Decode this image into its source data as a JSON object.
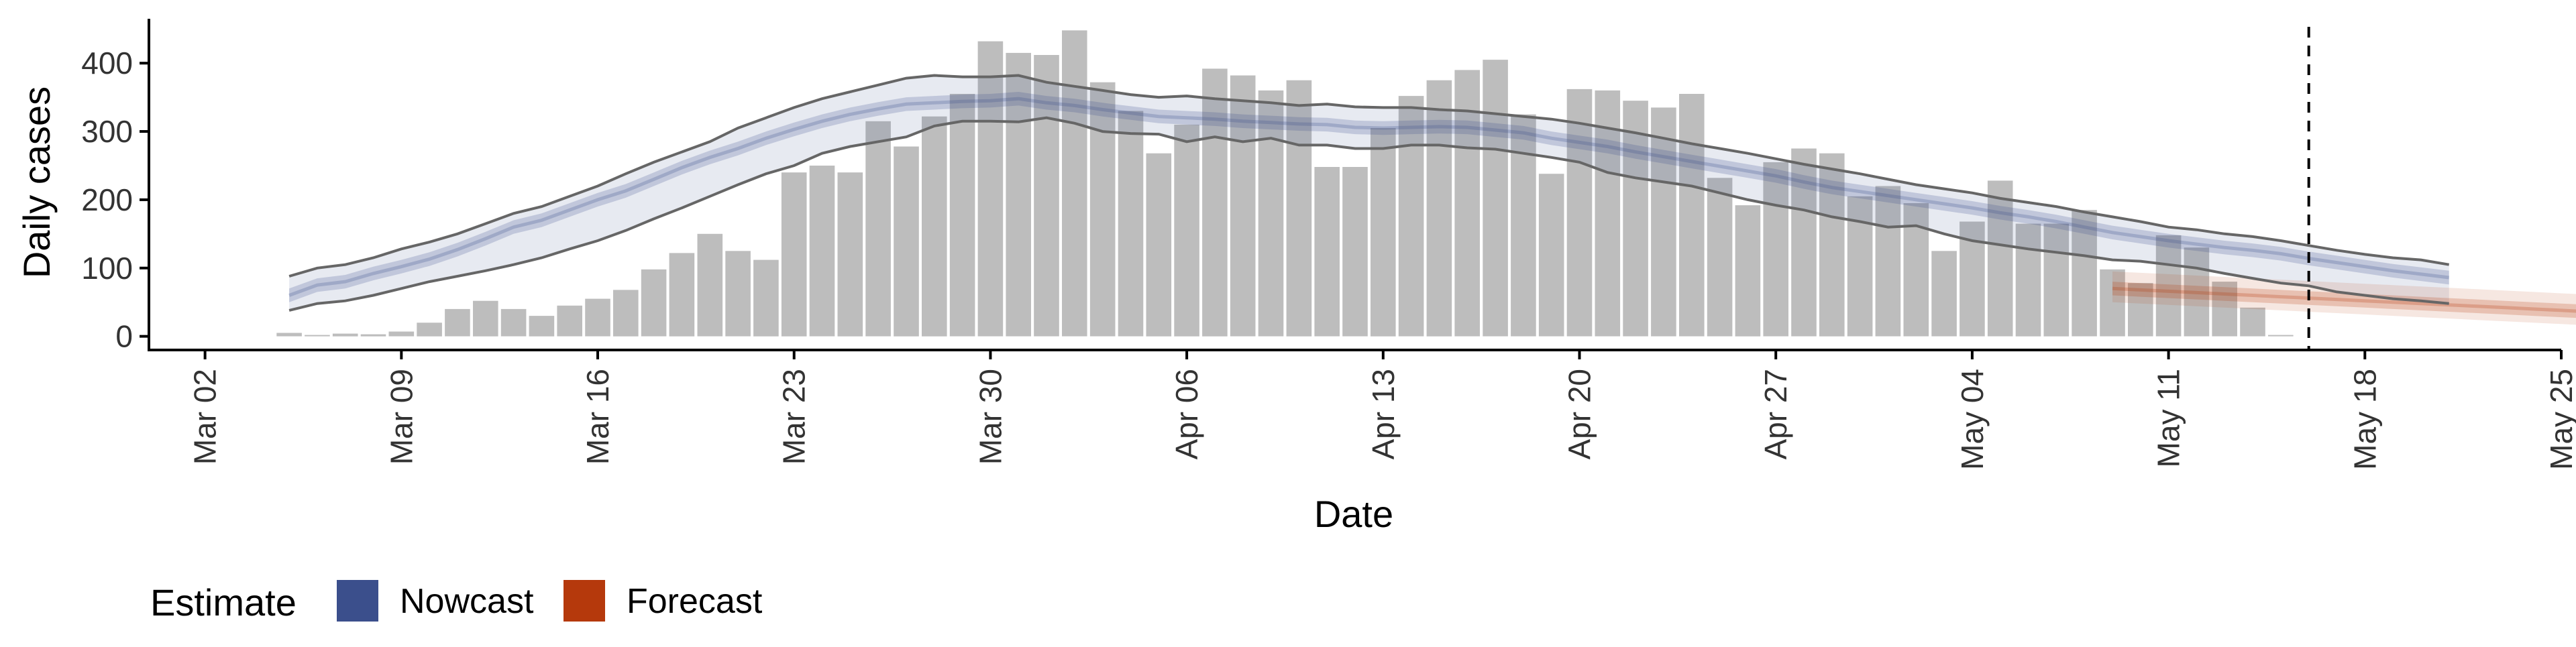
{
  "chart_data": {
    "type": "bar",
    "xlabel": "Date",
    "ylabel": "Daily cases",
    "ylim": [
      -20,
      465
    ],
    "xlim": [
      "2020-02-29",
      "2020-05-25"
    ],
    "y_ticks": [
      0,
      100,
      200,
      300,
      400
    ],
    "x_ticks": [
      {
        "date": "2020-03-02",
        "label": "Mar 02"
      },
      {
        "date": "2020-03-09",
        "label": "Mar 09"
      },
      {
        "date": "2020-03-16",
        "label": "Mar 16"
      },
      {
        "date": "2020-03-23",
        "label": "Mar 23"
      },
      {
        "date": "2020-03-30",
        "label": "Mar 30"
      },
      {
        "date": "2020-04-06",
        "label": "Apr 06"
      },
      {
        "date": "2020-04-13",
        "label": "Apr 13"
      },
      {
        "date": "2020-04-20",
        "label": "Apr 20"
      },
      {
        "date": "2020-04-27",
        "label": "Apr 27"
      },
      {
        "date": "2020-05-04",
        "label": "May 04"
      },
      {
        "date": "2020-05-11",
        "label": "May 11"
      },
      {
        "date": "2020-05-18",
        "label": "May 18"
      },
      {
        "date": "2020-05-25",
        "label": "May 25"
      }
    ],
    "grid": false,
    "legend_position": "bottom-left",
    "bar_color": "#bdbdbd",
    "reference_line_date": "2020-05-16",
    "observed_cases": {
      "start_date": "2020-03-05",
      "values": [
        5,
        2,
        4,
        3,
        7,
        20,
        40,
        52,
        40,
        30,
        45,
        55,
        68,
        98,
        122,
        150,
        125,
        112,
        240,
        250,
        240,
        315,
        278,
        322,
        355,
        432,
        415,
        412,
        448,
        372,
        330,
        268,
        310,
        392,
        382,
        360,
        375,
        248,
        248,
        305,
        352,
        375,
        390,
        405,
        325,
        238,
        362,
        360,
        345,
        335,
        355,
        232,
        192,
        255,
        275,
        268,
        205,
        220,
        195,
        125,
        168,
        228,
        165,
        165,
        185,
        98,
        78,
        148,
        130,
        80,
        42,
        2
      ]
    },
    "series": [
      {
        "name": "Nowcast",
        "color": "#3b4f8c",
        "start_date": "2020-03-05",
        "median": [
          60,
          75,
          80,
          92,
          102,
          113,
          127,
          143,
          160,
          170,
          185,
          200,
          213,
          230,
          247,
          262,
          275,
          290,
          303,
          315,
          325,
          333,
          340,
          342,
          344,
          345,
          348,
          342,
          338,
          332,
          327,
          322,
          320,
          318,
          315,
          313,
          311,
          310,
          306,
          305,
          306,
          307,
          306,
          302,
          298,
          290,
          284,
          278,
          270,
          263,
          256,
          249,
          242,
          235,
          226,
          218,
          212,
          206,
          200,
          194,
          188,
          181,
          175,
          168,
          160,
          152,
          146,
          140,
          135,
          130,
          126,
          121,
          114,
          108,
          102,
          96,
          91,
          86
        ],
        "inner_lower": [
          50,
          65,
          70,
          82,
          92,
          103,
          117,
          133,
          150,
          160,
          175,
          190,
          203,
          220,
          237,
          252,
          265,
          280,
          293,
          305,
          315,
          323,
          330,
          332,
          334,
          335,
          338,
          332,
          328,
          322,
          317,
          312,
          310,
          308,
          305,
          303,
          301,
          300,
          296,
          295,
          296,
          297,
          296,
          292,
          288,
          280,
          274,
          268,
          260,
          253,
          246,
          239,
          232,
          225,
          216,
          208,
          202,
          196,
          190,
          184,
          178,
          171,
          165,
          158,
          150,
          142,
          136,
          130,
          125,
          120,
          116,
          111,
          104,
          98,
          92,
          86,
          81,
          76
        ],
        "inner_upper": [
          70,
          85,
          90,
          102,
          112,
          123,
          137,
          153,
          170,
          180,
          195,
          210,
          223,
          240,
          257,
          272,
          285,
          300,
          313,
          325,
          335,
          343,
          350,
          352,
          354,
          355,
          358,
          352,
          348,
          342,
          337,
          332,
          330,
          328,
          325,
          323,
          321,
          320,
          316,
          315,
          316,
          317,
          316,
          312,
          308,
          300,
          294,
          288,
          280,
          273,
          266,
          259,
          252,
          245,
          236,
          228,
          222,
          216,
          210,
          204,
          198,
          191,
          185,
          178,
          170,
          162,
          156,
          150,
          145,
          140,
          136,
          131,
          124,
          118,
          112,
          106,
          101,
          96
        ],
        "outer_lower": [
          38,
          48,
          52,
          60,
          70,
          80,
          88,
          96,
          105,
          115,
          128,
          140,
          155,
          172,
          188,
          205,
          222,
          238,
          250,
          268,
          278,
          285,
          292,
          308,
          315,
          315,
          314,
          320,
          312,
          300,
          297,
          296,
          285,
          292,
          285,
          290,
          280,
          280,
          275,
          275,
          280,
          280,
          276,
          274,
          268,
          262,
          255,
          240,
          232,
          226,
          220,
          210,
          200,
          192,
          185,
          175,
          168,
          160,
          162,
          150,
          140,
          134,
          128,
          123,
          118,
          112,
          110,
          105,
          100,
          92,
          85,
          78,
          74,
          65,
          60,
          55,
          52,
          48
        ],
        "outer_upper": [
          88,
          100,
          105,
          115,
          128,
          138,
          150,
          165,
          180,
          190,
          205,
          220,
          238,
          255,
          270,
          285,
          305,
          320,
          335,
          348,
          358,
          368,
          378,
          382,
          380,
          380,
          382,
          372,
          366,
          360,
          354,
          350,
          352,
          348,
          345,
          342,
          338,
          340,
          336,
          335,
          335,
          332,
          330,
          326,
          322,
          318,
          312,
          305,
          298,
          290,
          282,
          275,
          268,
          260,
          252,
          245,
          238,
          230,
          222,
          216,
          210,
          202,
          196,
          190,
          182,
          175,
          168,
          160,
          156,
          150,
          146,
          140,
          133,
          126,
          120,
          115,
          112,
          105
        ]
      },
      {
        "name": "Forecast",
        "color": "#b5390c",
        "start_date": "2020-05-09",
        "median": [
          70,
          68,
          66,
          64,
          62,
          60,
          58,
          56,
          54,
          52,
          50,
          48,
          46,
          44,
          42,
          40,
          38,
          36,
          34,
          32,
          30,
          28,
          26,
          24
        ],
        "inner_lower": [
          60,
          58,
          56,
          54,
          52,
          50,
          48,
          46,
          44,
          42,
          40,
          38,
          36,
          34,
          32,
          30,
          28,
          26,
          24,
          22,
          20,
          18,
          16,
          14
        ],
        "inner_upper": [
          80,
          78,
          76,
          74,
          72,
          70,
          68,
          66,
          64,
          62,
          60,
          58,
          56,
          54,
          52,
          50,
          48,
          46,
          44,
          42,
          40,
          38,
          36,
          34
        ],
        "outer_lower": [
          50,
          48,
          46,
          44,
          42,
          40,
          38,
          36,
          34,
          32,
          30,
          28,
          26,
          24,
          22,
          20,
          18,
          16,
          14,
          12,
          10,
          8,
          6,
          4
        ],
        "outer_upper": [
          95,
          93,
          91,
          89,
          87,
          85,
          83,
          81,
          79,
          77,
          75,
          73,
          71,
          69,
          67,
          65,
          63,
          61,
          59,
          57,
          55,
          53,
          51,
          49
        ]
      }
    ],
    "legend": {
      "title": "Estimate",
      "entries": [
        {
          "label": "Nowcast",
          "color": "#3b4f8c"
        },
        {
          "label": "Forecast",
          "color": "#b5390c"
        }
      ]
    }
  }
}
